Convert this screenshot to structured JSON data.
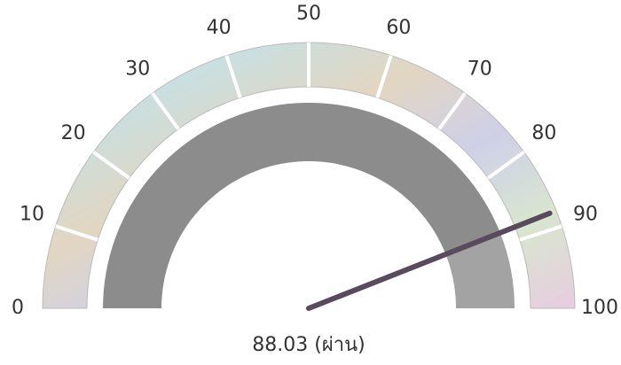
{
  "chart_data": {
    "type": "gauge",
    "values": [
      88.03
    ],
    "value_labels": [
      "88.03 (ผ่าน)"
    ],
    "range": [
      0,
      100
    ],
    "ticks": [
      0,
      10,
      20,
      30,
      40,
      50,
      60,
      70,
      80,
      90,
      100
    ],
    "band_color": "#8c8c8c",
    "needle_color": "#5a4a5e"
  }
}
